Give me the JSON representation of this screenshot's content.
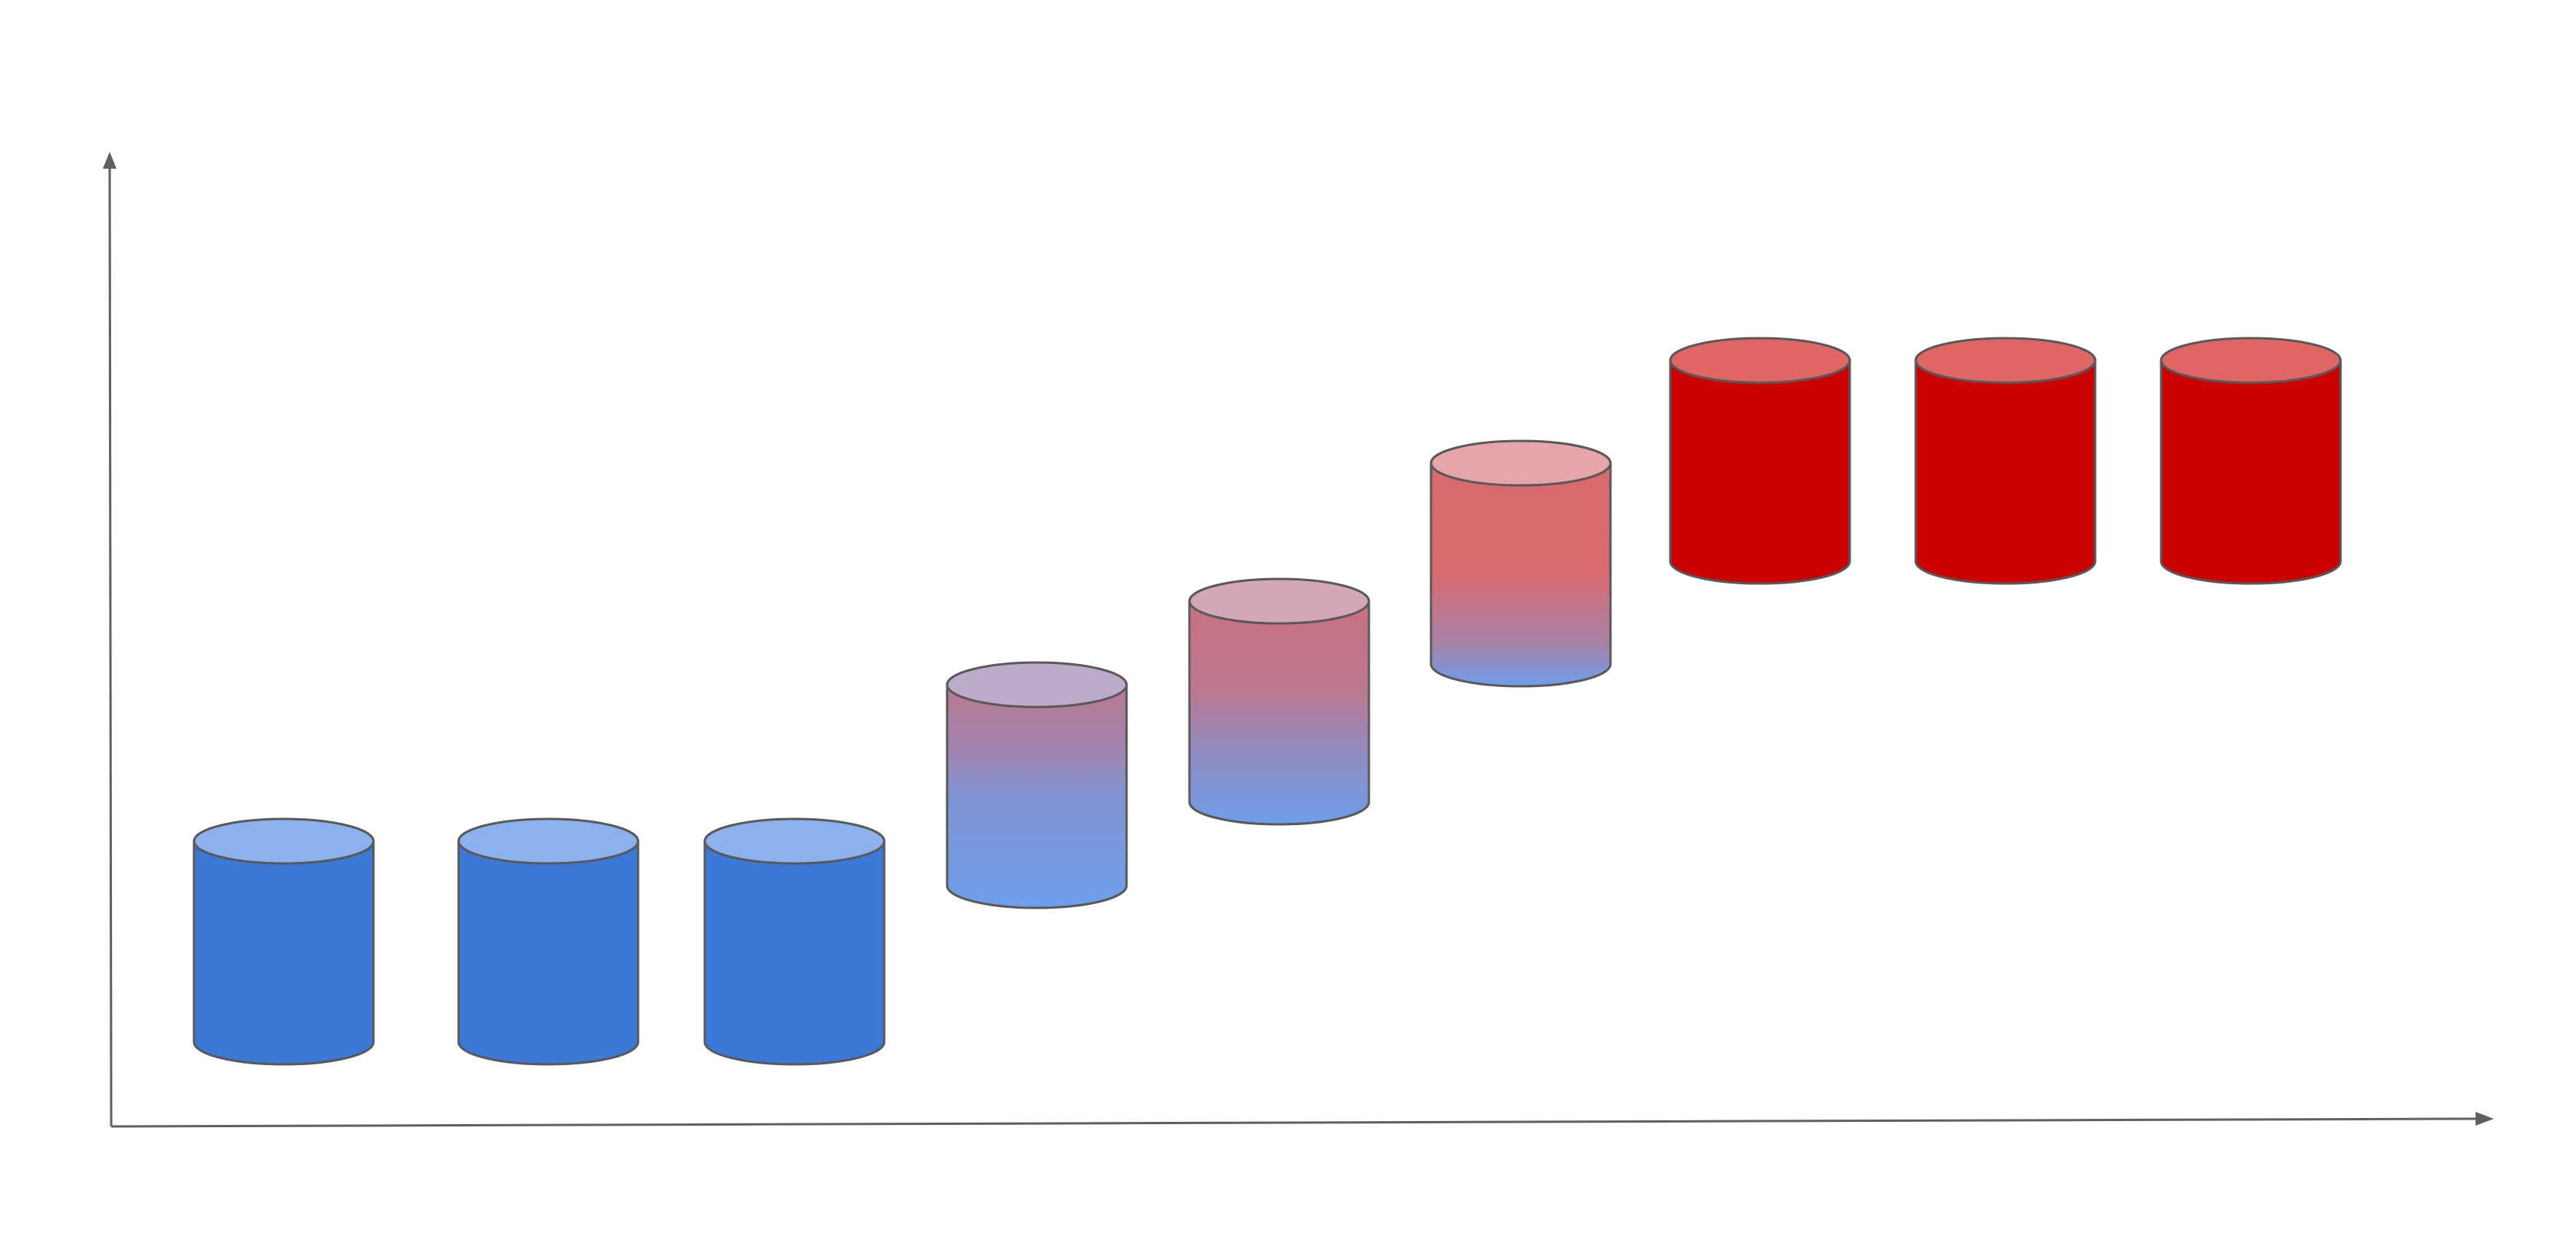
{
  "diagram": {
    "description_type": "cylinder-progression",
    "axes": {
      "x_label": "",
      "y_label": "",
      "color": "#606060"
    },
    "colors": {
      "blue_body": "#3c78d8",
      "blue_top": "#8db0ee",
      "red_body": "#cc0000",
      "red_top": "#e06666",
      "outline": "#595959",
      "mix_blue_end": "#6d9eeb",
      "mix_top_light": "#e6a5aa"
    },
    "cylinders": [
      {
        "id": 1,
        "level": 1,
        "style": "solid",
        "color_mix": 0.0
      },
      {
        "id": 2,
        "level": 1,
        "style": "solid",
        "color_mix": 0.0
      },
      {
        "id": 3,
        "level": 1,
        "style": "solid",
        "color_mix": 0.0
      },
      {
        "id": 4,
        "level": 2,
        "style": "gradient",
        "color_mix": 0.25
      },
      {
        "id": 5,
        "level": 3,
        "style": "gradient",
        "color_mix": 0.5
      },
      {
        "id": 6,
        "level": 4,
        "style": "gradient",
        "color_mix": 0.75
      },
      {
        "id": 7,
        "level": 5,
        "style": "solid",
        "color_mix": 1.0
      },
      {
        "id": 8,
        "level": 5,
        "style": "solid",
        "color_mix": 1.0
      },
      {
        "id": 9,
        "level": 5,
        "style": "solid",
        "color_mix": 1.0
      }
    ]
  }
}
